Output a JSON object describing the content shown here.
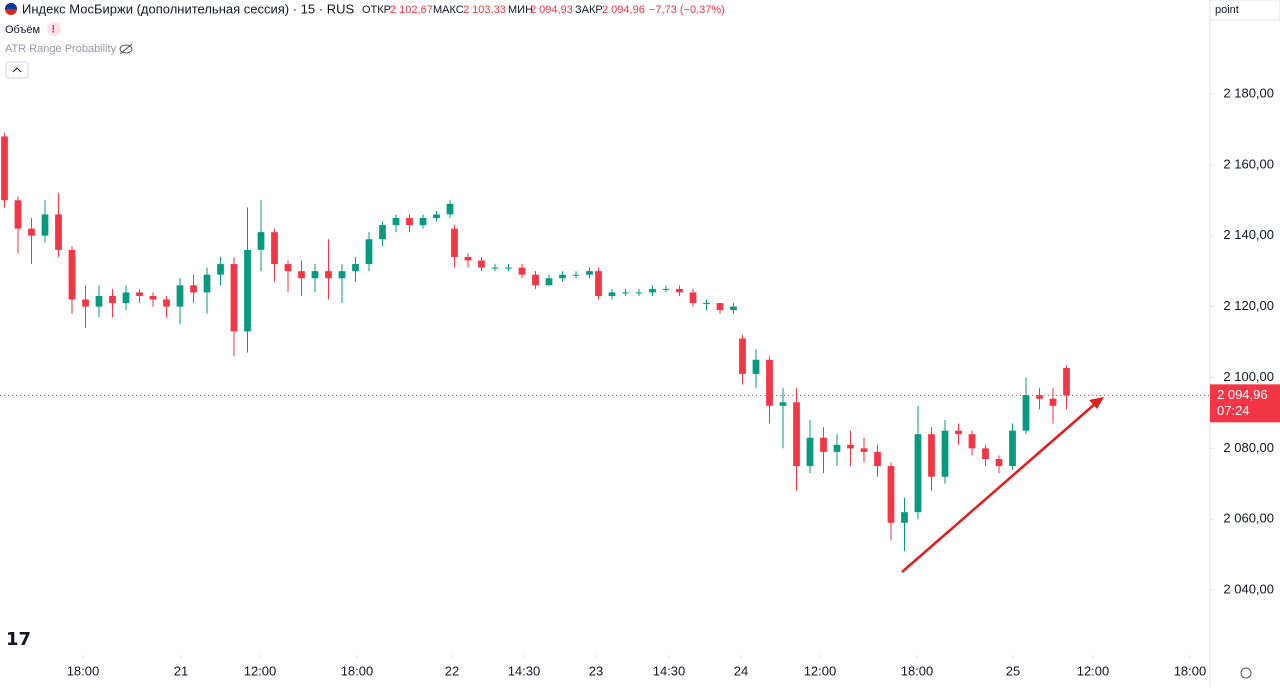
{
  "header": {
    "title": "Индекс МосБиржи (дополнительная сессия) · 15 · RUS",
    "open_label": "ОТКР",
    "open": {
      "value": 2102.67,
      "label": "2 102,67"
    },
    "high_label": "МАКС",
    "high": {
      "value": 2103.33,
      "label": "2 103,33"
    },
    "low_label": "МИН",
    "low": {
      "value": 2094.93,
      "label": "2 094,93"
    },
    "close_label": "ЗАКР",
    "close": {
      "value": 2094.96,
      "label": "2 094,96"
    },
    "change": "−7,73 (−0,37%)",
    "volume": "Объём",
    "indicator": "ATR Range Probability",
    "scale_mode": "point"
  },
  "chart_data": {
    "type": "candlestick",
    "up_color": "#089981",
    "down_color": "#f23645",
    "x": [
      1,
      4,
      7,
      10,
      13,
      16,
      19,
      22,
      25,
      28,
      31,
      34,
      37,
      40,
      43,
      46,
      49,
      52,
      55,
      58,
      61,
      64,
      67,
      70,
      73,
      76,
      79,
      82,
      85,
      88,
      91,
      94,
      97,
      100,
      101,
      104,
      107,
      110,
      113,
      116,
      119,
      122,
      125,
      128,
      131,
      133,
      136,
      139,
      142,
      145,
      148,
      151,
      154,
      157,
      160,
      163,
      165,
      168,
      171,
      174,
      177,
      180,
      183,
      186,
      189,
      192,
      195,
      198,
      201,
      204,
      207,
      210,
      213,
      216,
      219,
      222,
      225,
      228,
      231,
      234,
      237
    ],
    "open": [
      2168,
      2150,
      2142,
      2140,
      2146,
      2136,
      2122,
      2120,
      2123,
      2121,
      2124,
      2123,
      2122,
      2120,
      2126,
      2124,
      2129,
      2132,
      2113,
      2136,
      2141,
      2132,
      2130,
      2128,
      2130,
      2128,
      2130,
      2132,
      2139,
      2143,
      2145,
      2143,
      2145,
      2146,
      2142,
      2134,
      2133,
      2131,
      2131,
      2131,
      2129,
      2126,
      2128,
      2129,
      2129,
      2130,
      2123,
      2124,
      2124,
      2124,
      2125,
      2125,
      2124,
      2121,
      2121,
      2119,
      2111,
      2101,
      2105,
      2092,
      2093,
      2075,
      2083,
      2079,
      2081,
      2080,
      2079,
      2075,
      2059,
      2062,
      2084,
      2072,
      2085,
      2084,
      2080,
      2077,
      2075,
      2085,
      2095,
      2094,
      2102.67
    ],
    "high": [
      2169,
      2151,
      2145,
      2150,
      2152,
      2137,
      2126,
      2126,
      2125,
      2126,
      2125,
      2124,
      2123,
      2128,
      2129,
      2131,
      2134,
      2134,
      2148,
      2150,
      2142,
      2133,
      2133,
      2132,
      2139,
      2132,
      2134,
      2141,
      2144,
      2146,
      2146,
      2146,
      2147,
      2150,
      2143,
      2135,
      2134,
      2132,
      2132,
      2132,
      2130,
      2129,
      2130,
      2130,
      2131,
      2131,
      2125,
      2125,
      2125,
      2126,
      2126,
      2126,
      2125,
      2122,
      2121,
      2121,
      2112,
      2108,
      2106,
      2097,
      2097,
      2088,
      2086,
      2084,
      2085,
      2083,
      2081,
      2076,
      2066,
      2092,
      2086,
      2088,
      2087,
      2085,
      2081,
      2078,
      2087,
      2100,
      2097,
      2097,
      2103.33
    ],
    "low": [
      2148,
      2135,
      2132,
      2138,
      2134,
      2118,
      2114,
      2117,
      2117,
      2119,
      2121,
      2120,
      2117,
      2115,
      2121,
      2118,
      2126,
      2106,
      2107,
      2130,
      2127,
      2124,
      2123,
      2124,
      2122,
      2121,
      2127,
      2130,
      2137,
      2141,
      2141,
      2142,
      2144,
      2145,
      2131,
      2131,
      2130,
      2130,
      2130,
      2128,
      2125,
      2126,
      2127,
      2128,
      2128,
      2122,
      2122,
      2123,
      2123,
      2123,
      2124,
      2123,
      2120,
      2119,
      2118,
      2118,
      2098,
      2097,
      2087,
      2080,
      2068,
      2073,
      2073,
      2075,
      2075,
      2076,
      2072,
      2054,
      2051,
      2060,
      2068,
      2070,
      2081,
      2078,
      2075,
      2073,
      2074,
      2084,
      2091,
      2087,
      2091
    ],
    "close": [
      2150,
      2142,
      2140,
      2146,
      2136,
      2122,
      2120,
      2123,
      2121,
      2124,
      2123,
      2122,
      2120,
      2126,
      2124,
      2129,
      2132,
      2113,
      2136,
      2141,
      2132,
      2130,
      2128,
      2130,
      2128,
      2130,
      2132,
      2139,
      2143,
      2145,
      2143,
      2145,
      2146,
      2149,
      2134,
      2133,
      2131,
      2131,
      2131,
      2129,
      2126,
      2128,
      2129,
      2129,
      2130,
      2123,
      2124,
      2124,
      2124,
      2125,
      2125,
      2124,
      2121,
      2121,
      2119,
      2120,
      2101,
      2105,
      2092,
      2093,
      2075,
      2083,
      2079,
      2081,
      2080,
      2079,
      2075,
      2059,
      2062,
      2084,
      2072,
      2085,
      2084,
      2080,
      2077,
      2075,
      2085,
      2095,
      2094,
      2092,
      2094.96
    ],
    "last_price": {
      "value": 2094.96,
      "label": "2 094,96"
    },
    "countdown": "07:24",
    "xlim": [
      0,
      268.89
    ],
    "ylim": [
      2021.7,
      2206.5
    ],
    "xticks": [
      {
        "value": 18.44,
        "label": "18:00"
      },
      {
        "value": 40.22,
        "label": "21"
      },
      {
        "value": 57.78,
        "label": "12:00"
      },
      {
        "value": 79.33,
        "label": "18:00"
      },
      {
        "value": 100.44,
        "label": "22"
      },
      {
        "value": 116.44,
        "label": "14:30"
      },
      {
        "value": 132.44,
        "label": "23"
      },
      {
        "value": 148.67,
        "label": "14:30"
      },
      {
        "value": 164.67,
        "label": "24"
      },
      {
        "value": 182.22,
        "label": "12:00"
      },
      {
        "value": 203.78,
        "label": "18:00"
      },
      {
        "value": 225.11,
        "label": "25"
      },
      {
        "value": 242.89,
        "label": "12:00"
      },
      {
        "value": 264.44,
        "label": "18:00"
      }
    ],
    "yticks": [
      {
        "value": 2040,
        "label": "2 040,00"
      },
      {
        "value": 2060,
        "label": "2 060,00"
      },
      {
        "value": 2080,
        "label": "2 080,00"
      },
      {
        "value": 2100,
        "label": "2 100,00"
      },
      {
        "value": 2120,
        "label": "2 120,00"
      },
      {
        "value": 2140,
        "label": "2 140,00"
      },
      {
        "value": 2160,
        "label": "2 160,00"
      },
      {
        "value": 2180,
        "label": "2 180,00"
      }
    ]
  }
}
